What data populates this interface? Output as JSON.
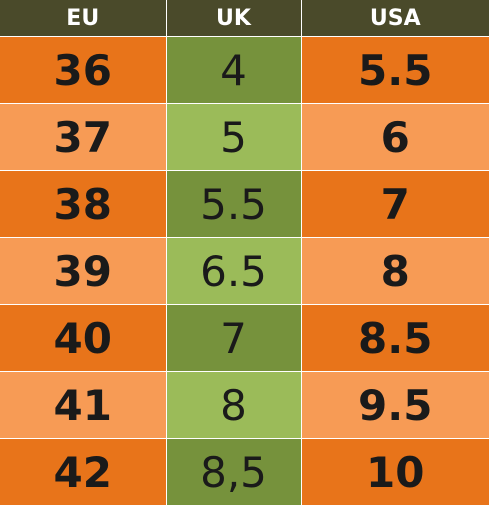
{
  "headers": {
    "eu": "EU",
    "uk": "UK",
    "usa": "USA"
  },
  "rows": [
    {
      "eu": "36",
      "uk": "4",
      "usa": "5.5"
    },
    {
      "eu": "37",
      "uk": "5",
      "usa": "6"
    },
    {
      "eu": "38",
      "uk": "5.5",
      "usa": "7"
    },
    {
      "eu": "39",
      "uk": "6.5",
      "usa": "8"
    },
    {
      "eu": "40",
      "uk": "7",
      "usa": "8.5"
    },
    {
      "eu": "41",
      "uk": "8",
      "usa": "9.5"
    },
    {
      "eu": "42",
      "uk": "8,5",
      "usa": "10"
    }
  ],
  "colors": {
    "header_bg": "#4a4a2a",
    "orange_dark": "#e8741a",
    "orange_light": "#f79b55",
    "green_dark": "#76923c",
    "green_light": "#9bbb59"
  }
}
